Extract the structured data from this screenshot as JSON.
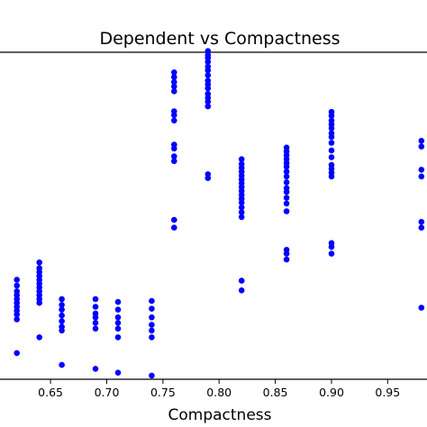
{
  "chart_data": {
    "type": "scatter",
    "title": "Dependent vs Compactness",
    "xlabel": "Compactness",
    "ylabel": "",
    "xlim": [
      0.605,
      0.985
    ],
    "ylim": [
      0,
      100
    ],
    "x_ticks": [
      "0.65",
      "0.70",
      "0.75",
      "0.80",
      "0.85",
      "0.90",
      "0.95"
    ],
    "x_tick_values": [
      0.65,
      0.7,
      0.75,
      0.8,
      0.85,
      0.9,
      0.95
    ],
    "grid": false,
    "point_color": "#0000ff",
    "series": [
      {
        "x": [
          0.62,
          0.62,
          0.62,
          0.62,
          0.62,
          0.62,
          0.62,
          0.62,
          0.62,
          0.62,
          0.62,
          0.64,
          0.64,
          0.64,
          0.64,
          0.64,
          0.64,
          0.64,
          0.64,
          0.64,
          0.64,
          0.64,
          0.64,
          0.66,
          0.66,
          0.66,
          0.66,
          0.66,
          0.66,
          0.66,
          0.66,
          0.69,
          0.69,
          0.69,
          0.69,
          0.69,
          0.69,
          0.69,
          0.71,
          0.71,
          0.71,
          0.71,
          0.71,
          0.71,
          0.71,
          0.74,
          0.74,
          0.74,
          0.74,
          0.74,
          0.74,
          0.74,
          0.76,
          0.76,
          0.76,
          0.76,
          0.76,
          0.76,
          0.76,
          0.76,
          0.76,
          0.76,
          0.76,
          0.76,
          0.76,
          0.76,
          0.79,
          0.79,
          0.79,
          0.79,
          0.79,
          0.79,
          0.79,
          0.79,
          0.79,
          0.79,
          0.79,
          0.79,
          0.79,
          0.79,
          0.79,
          0.79,
          0.82,
          0.82,
          0.82,
          0.82,
          0.82,
          0.82,
          0.82,
          0.82,
          0.82,
          0.82,
          0.82,
          0.82,
          0.82,
          0.82,
          0.82,
          0.82,
          0.82,
          0.86,
          0.86,
          0.86,
          0.86,
          0.86,
          0.86,
          0.86,
          0.86,
          0.86,
          0.86,
          0.86,
          0.86,
          0.86,
          0.86,
          0.86,
          0.86,
          0.86,
          0.9,
          0.9,
          0.9,
          0.9,
          0.9,
          0.9,
          0.9,
          0.9,
          0.9,
          0.9,
          0.9,
          0.9,
          0.9,
          0.9,
          0.9,
          0.9,
          0.9,
          0.98,
          0.98,
          0.98,
          0.98,
          0.98,
          0.98,
          0.98
        ],
        "y": [
          7.3,
          17.8,
          19.3,
          20.5,
          21.7,
          22.9,
          24.1,
          25.3,
          26.5,
          28.3,
          30.1,
          12.2,
          22.9,
          24.1,
          25.3,
          26.5,
          27.7,
          28.9,
          30.1,
          31.3,
          32.5,
          33.7,
          35.5,
          3.6,
          14.3,
          15.5,
          17.2,
          19.0,
          20.8,
          22.3,
          24.1,
          2.4,
          14.9,
          16.7,
          18.4,
          19.6,
          21.7,
          24.1,
          1.2,
          12.2,
          14.9,
          16.7,
          18.4,
          20.8,
          23.2,
          0.3,
          12.2,
          14.3,
          16.1,
          18.4,
          21.1,
          23.5,
          46.3,
          48.7,
          67.0,
          68.5,
          70.9,
          72.1,
          79.6,
          81.3,
          82.5,
          88.7,
          90.2,
          91.6,
          93.1,
          94.6,
          61.7,
          62.9,
          84.0,
          85.5,
          86.7,
          87.9,
          89.6,
          90.8,
          92.0,
          93.7,
          95.2,
          96.4,
          97.9,
          99.1,
          100.0,
          101.2,
          26.8,
          29.8,
          49.6,
          51.1,
          52.6,
          54.1,
          55.3,
          56.5,
          57.7,
          58.9,
          60.1,
          61.3,
          62.5,
          63.7,
          64.9,
          66.1,
          67.6,
          36.4,
          38.2,
          39.4,
          51.4,
          53.8,
          55.6,
          57.4,
          58.6,
          60.4,
          62.2,
          63.7,
          65.2,
          66.4,
          67.6,
          68.8,
          70.0,
          71.2,
          38.2,
          40.3,
          41.5,
          62.2,
          63.4,
          64.6,
          65.8,
          68.2,
          70.3,
          72.7,
          74.5,
          75.7,
          77.2,
          78.4,
          79.6,
          81.1,
          82.3,
          21.4,
          46.3,
          48.1,
          62.2,
          64.3,
          71.5,
          73.3
        ]
      }
    ]
  }
}
